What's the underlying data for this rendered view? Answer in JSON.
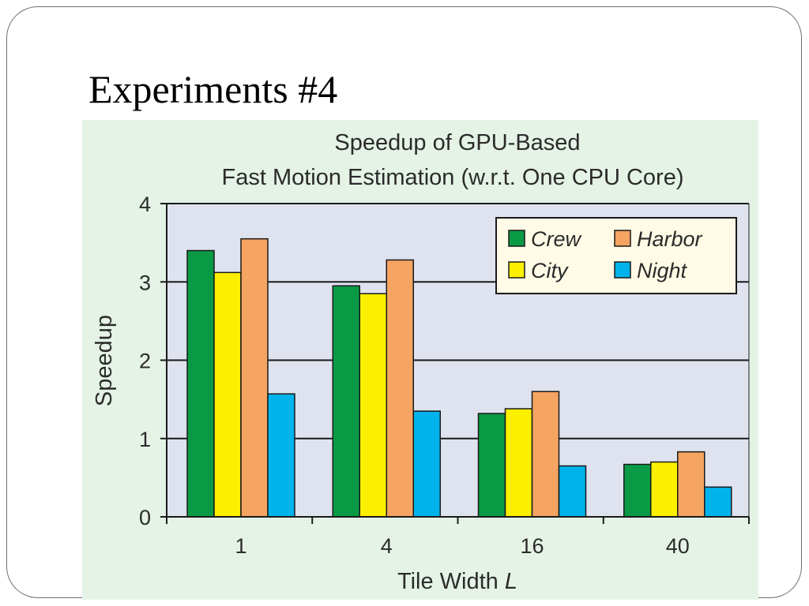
{
  "slide": {
    "title": "Experiments #4"
  },
  "chart_data": {
    "type": "bar",
    "title": "Speedup of GPU-Based",
    "subtitle": "Fast Motion Estimation (w.r.t. One CPU Core)",
    "xlabel": "Tile Width",
    "xlabel_var": "L",
    "ylabel": "Speedup",
    "ylim": [
      0,
      4
    ],
    "yticks": [
      0,
      1,
      2,
      3,
      4
    ],
    "categories": [
      "1",
      "4",
      "16",
      "40"
    ],
    "grid": true,
    "legend_position": "top-right",
    "background": "#dfe3ef",
    "panel_background": "#e4f3e6",
    "series": [
      {
        "name": "Crew",
        "color": "#0a9a45",
        "values": [
          3.4,
          2.95,
          1.32,
          0.67
        ]
      },
      {
        "name": "City",
        "color": "#fcf000",
        "values": [
          3.12,
          2.85,
          1.38,
          0.7
        ]
      },
      {
        "name": "Harbor",
        "color": "#f5a462",
        "values": [
          3.55,
          3.28,
          1.6,
          0.83
        ]
      },
      {
        "name": "Night",
        "color": "#00b3eb",
        "values": [
          1.57,
          1.35,
          0.65,
          0.38
        ]
      }
    ]
  }
}
